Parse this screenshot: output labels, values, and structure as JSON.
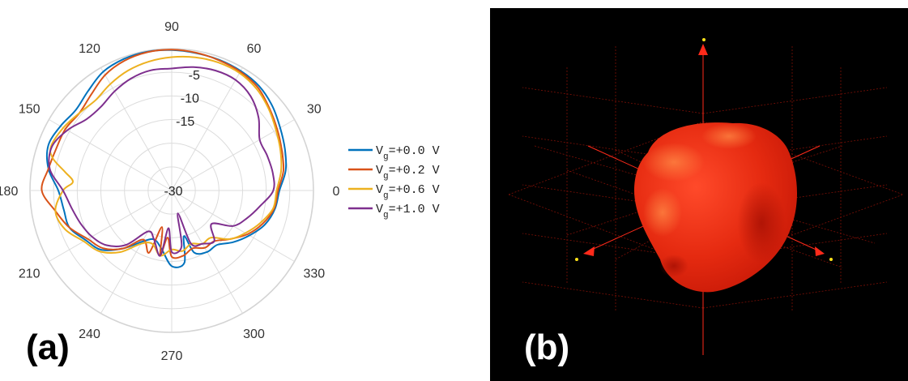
{
  "panels": {
    "a_label": "(a)",
    "b_label": "(b)"
  },
  "chart_data": [
    {
      "type": "polar-line",
      "theta_unit": "degrees",
      "theta_ticks": [
        "0",
        "30",
        "60",
        "90",
        "120",
        "150",
        "180",
        "210",
        "240",
        "270",
        "300",
        "330"
      ],
      "r_ticks": [
        "-30",
        "-15",
        "-10",
        "-5"
      ],
      "r_range": [
        -30,
        0
      ],
      "grid": true,
      "legend_position": "right",
      "series": [
        {
          "name": "Vg=+0.0 V",
          "base": "V",
          "sub": "g",
          "value": "=+0.0 V",
          "color": "#0072BD",
          "points": [
            [
              0,
              -7.2
            ],
            [
              10,
              -5.5
            ],
            [
              20,
              -4.5
            ],
            [
              30,
              -3.5
            ],
            [
              40,
              -2.2
            ],
            [
              50,
              -1.2
            ],
            [
              60,
              -0.8
            ],
            [
              70,
              -0.6
            ],
            [
              80,
              -0.5
            ],
            [
              90,
              -0.3
            ],
            [
              100,
              -0.2
            ],
            [
              110,
              -0.4
            ],
            [
              120,
              -1
            ],
            [
              130,
              -2.5
            ],
            [
              140,
              -3.5
            ],
            [
              150,
              -2.8
            ],
            [
              160,
              -2.2
            ],
            [
              170,
              -3.5
            ],
            [
              180,
              -6
            ],
            [
              190,
              -6.8
            ],
            [
              200,
              -7
            ],
            [
              210,
              -9
            ],
            [
              220,
              -10.5
            ],
            [
              230,
              -14
            ],
            [
              240,
              -17.5
            ],
            [
              250,
              -19
            ],
            [
              260,
              -17.5
            ],
            [
              270,
              -14
            ],
            [
              280,
              -14.5
            ],
            [
              285,
              -20
            ],
            [
              290,
              -16
            ],
            [
              300,
              -15
            ],
            [
              310,
              -15
            ],
            [
              320,
              -13
            ],
            [
              330,
              -11
            ],
            [
              340,
              -9
            ],
            [
              350,
              -7.8
            ]
          ]
        },
        {
          "name": "Vg=+0.2 V",
          "base": "V",
          "sub": "g",
          "value": "=+0.2 V",
          "color": "#D95319",
          "points": [
            [
              0,
              -7.5
            ],
            [
              10,
              -6
            ],
            [
              20,
              -5.2
            ],
            [
              30,
              -4.2
            ],
            [
              40,
              -3
            ],
            [
              50,
              -1.6
            ],
            [
              60,
              -1
            ],
            [
              70,
              -0.7
            ],
            [
              80,
              -0.4
            ],
            [
              90,
              -0.2
            ],
            [
              100,
              -0.3
            ],
            [
              110,
              -0.8
            ],
            [
              120,
              -1.8
            ],
            [
              130,
              -3.5
            ],
            [
              140,
              -4.5
            ],
            [
              150,
              -4
            ],
            [
              160,
              -4
            ],
            [
              170,
              -3.5
            ],
            [
              180,
              -2.5
            ],
            [
              190,
              -5
            ],
            [
              200,
              -7
            ],
            [
              210,
              -9.5
            ],
            [
              220,
              -11
            ],
            [
              230,
              -14
            ],
            [
              240,
              -18
            ],
            [
              250,
              -16
            ],
            [
              255,
              -22
            ],
            [
              260,
              -16
            ],
            [
              265,
              -20
            ],
            [
              270,
              -16
            ],
            [
              280,
              -16
            ],
            [
              290,
              -17
            ],
            [
              300,
              -16
            ],
            [
              310,
              -16
            ],
            [
              320,
              -14
            ],
            [
              330,
              -11.5
            ],
            [
              340,
              -9.5
            ],
            [
              350,
              -8
            ]
          ]
        },
        {
          "name": "Vg=+0.6 V",
          "base": "V",
          "sub": "g",
          "value": "=+0.6 V",
          "color": "#EDB120",
          "points": [
            [
              0,
              -7.8
            ],
            [
              10,
              -6.5
            ],
            [
              20,
              -5.5
            ],
            [
              30,
              -4.5
            ],
            [
              40,
              -3.2
            ],
            [
              50,
              -2
            ],
            [
              60,
              -1.3
            ],
            [
              70,
              -1.2
            ],
            [
              80,
              -1.4
            ],
            [
              90,
              -1.8
            ],
            [
              100,
              -2.3
            ],
            [
              110,
              -3
            ],
            [
              120,
              -4
            ],
            [
              130,
              -5
            ],
            [
              140,
              -4.5
            ],
            [
              150,
              -3.5
            ],
            [
              160,
              -2.8
            ],
            [
              165,
              -4
            ],
            [
              170,
              -7
            ],
            [
              175,
              -9
            ],
            [
              180,
              -7
            ],
            [
              190,
              -5
            ],
            [
              200,
              -6
            ],
            [
              210,
              -8.5
            ],
            [
              220,
              -10
            ],
            [
              230,
              -13
            ],
            [
              240,
              -17
            ],
            [
              250,
              -18
            ],
            [
              260,
              -16
            ],
            [
              270,
              -17.5
            ],
            [
              280,
              -17
            ],
            [
              290,
              -18
            ],
            [
              300,
              -17
            ],
            [
              310,
              -17
            ],
            [
              320,
              -14
            ],
            [
              330,
              -12
            ],
            [
              340,
              -10
            ],
            [
              350,
              -8.2
            ]
          ]
        },
        {
          "name": "Vg=+1.0 V",
          "base": "V",
          "sub": "g",
          "value": "=+1.0 V",
          "color": "#7E2F8E",
          "points": [
            [
              0,
              -8.5
            ],
            [
              10,
              -8.3
            ],
            [
              20,
              -8.5
            ],
            [
              30,
              -8.5
            ],
            [
              40,
              -6
            ],
            [
              50,
              -4
            ],
            [
              60,
              -3
            ],
            [
              70,
              -3
            ],
            [
              80,
              -3.5
            ],
            [
              90,
              -4.2
            ],
            [
              100,
              -4.2
            ],
            [
              110,
              -4.8
            ],
            [
              120,
              -5.8
            ],
            [
              130,
              -6.8
            ],
            [
              140,
              -6.5
            ],
            [
              150,
              -4.5
            ],
            [
              160,
              -3
            ],
            [
              170,
              -3.8
            ],
            [
              180,
              -7
            ],
            [
              190,
              -8.5
            ],
            [
              200,
              -9.5
            ],
            [
              210,
              -10.5
            ],
            [
              220,
              -12
            ],
            [
              230,
              -15
            ],
            [
              240,
              -20
            ],
            [
              250,
              -19
            ],
            [
              260,
              -16
            ],
            [
              265,
              -22
            ],
            [
              270,
              -17
            ],
            [
              280,
              -18
            ],
            [
              285,
              -25
            ],
            [
              290,
              -18
            ],
            [
              300,
              -17
            ],
            [
              310,
              -16
            ],
            [
              320,
              -19
            ],
            [
              330,
              -15
            ],
            [
              340,
              -13
            ],
            [
              350,
              -11
            ]
          ]
        }
      ]
    },
    {
      "type": "3d-radiation-pattern",
      "background": "#000000",
      "surface_color": "#ED2B13",
      "axis_color": "#FF2A1A",
      "axis_label_color": "#FFE31A"
    }
  ]
}
